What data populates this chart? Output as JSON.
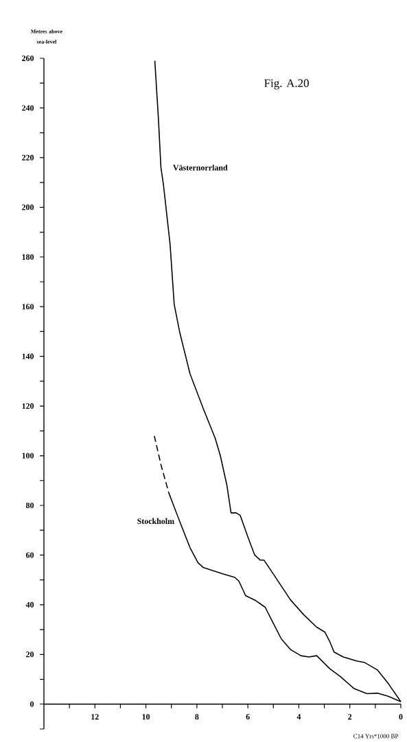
{
  "chart_data": {
    "type": "line",
    "title": "Fig. A.20",
    "xlabel": "C14 Yrs*1000 BP",
    "ylabel": "Metres above sea-level",
    "xlim": [
      14,
      0
    ],
    "ylim": [
      -10,
      260
    ],
    "xticks": [
      {
        "value": 13,
        "label": null
      },
      12,
      {
        "value": 11,
        "label": null
      },
      10,
      {
        "value": 9,
        "label": null
      },
      8,
      {
        "value": 7,
        "label": null
      },
      6,
      {
        "value": 5,
        "label": null
      },
      4,
      {
        "value": 3,
        "label": null
      },
      2,
      {
        "value": 1,
        "label": null
      },
      0
    ],
    "yticks": [
      {
        "value": -10,
        "label": null
      },
      0,
      {
        "value": 10,
        "label": null
      },
      20,
      {
        "value": 30,
        "label": null
      },
      40,
      {
        "value": 50,
        "label": null
      },
      60,
      {
        "value": 70,
        "label": null
      },
      80,
      {
        "value": 90,
        "label": null
      },
      100,
      {
        "value": 110,
        "label": null
      },
      120,
      {
        "value": 130,
        "label": null
      },
      140,
      {
        "value": 150,
        "label": null
      },
      160,
      {
        "value": 170,
        "label": null
      },
      180,
      {
        "value": 190,
        "label": null
      },
      200,
      {
        "value": 210,
        "label": null
      },
      220,
      {
        "value": 230,
        "label": null
      },
      240,
      {
        "value": 250,
        "label": null
      },
      260
    ],
    "grid": false,
    "series": [
      {
        "name": "Västernorrland",
        "color": "#000000",
        "line_style": "solid",
        "x": [
          9.65,
          9.51,
          9.41,
          9.31,
          9.05,
          8.89,
          8.68,
          8.27,
          7.75,
          7.28,
          7.08,
          6.82,
          6.66,
          6.46,
          6.3,
          5.99,
          5.73,
          5.52,
          5.37,
          4.95,
          4.33,
          3.81,
          3.3,
          2.98,
          2.78,
          2.62,
          2.26,
          1.74,
          1.43,
          0.91,
          0.5,
          0
        ],
        "values": [
          259,
          236,
          216,
          209,
          185,
          161,
          150,
          133,
          119,
          107,
          100,
          88,
          77,
          77,
          76,
          67,
          60,
          58,
          58,
          51.6,
          42,
          36,
          31,
          29,
          25,
          21,
          19,
          17.4,
          16.8,
          13.7,
          8.4,
          1
        ]
      },
      {
        "color": "#000000",
        "line_style": "dashed",
        "x": [
          9.67,
          9.4,
          9.1
        ],
        "values": [
          108,
          96,
          85
        ]
      },
      {
        "name": "Stockholm",
        "color": "#000000",
        "line_style": "solid",
        "x": [
          9.1,
          8.68,
          8.27,
          7.96,
          7.75,
          7.03,
          6.51,
          6.35,
          6.09,
          5.68,
          5.32,
          5.06,
          4.69,
          4.33,
          3.92,
          3.61,
          3.3,
          2.78,
          2.36,
          1.84,
          1.33,
          0.91,
          0.5,
          0
        ],
        "values": [
          85,
          73.7,
          63,
          57,
          55,
          52.6,
          51,
          49.5,
          43.7,
          41.6,
          39,
          33.7,
          26.3,
          22,
          19.5,
          19,
          19.5,
          14.2,
          11,
          6.3,
          4.2,
          4.4,
          3.2,
          1
        ]
      }
    ]
  }
}
